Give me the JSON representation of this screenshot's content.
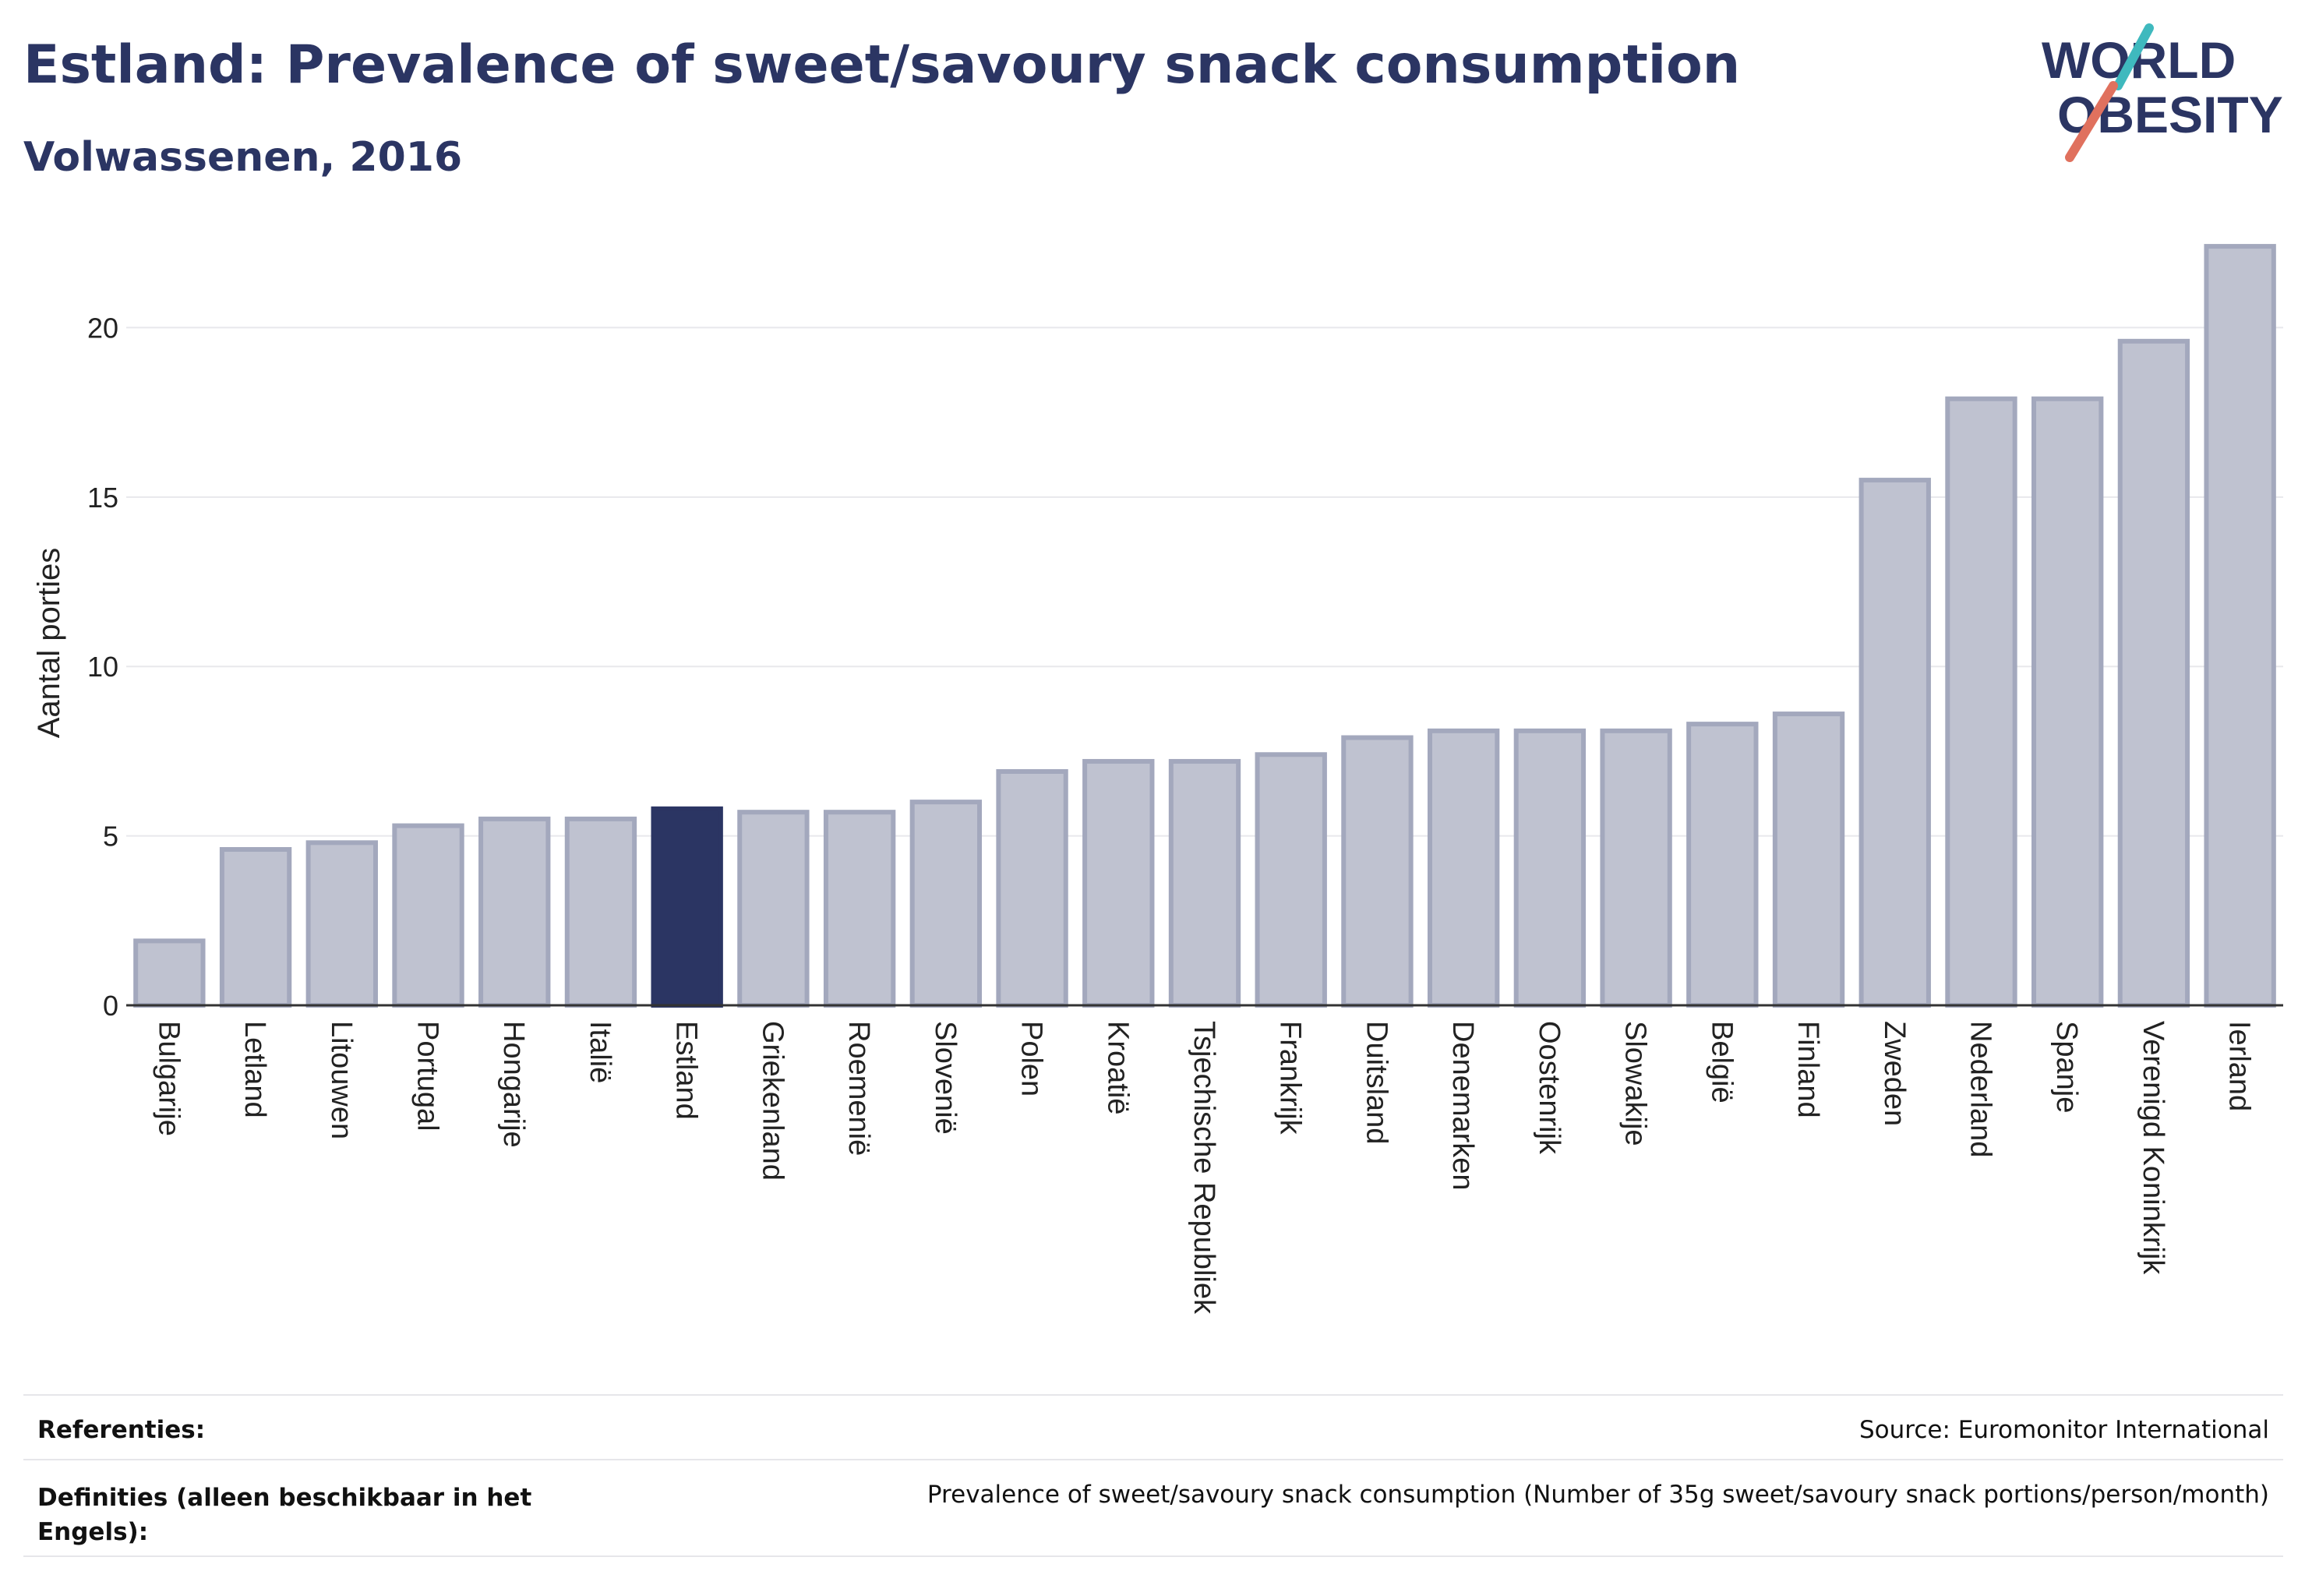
{
  "header": {
    "title": "Estland: Prevalence of sweet/savoury snack consumption",
    "subtitle": "Volwassenen, 2016"
  },
  "logo": {
    "line1": "WORLD",
    "line2": "OBESITY",
    "accent_teal": "#3fb9be",
    "accent_coral": "#e0715e",
    "text_color": "#2b3563"
  },
  "chart_data": {
    "type": "bar",
    "title": "",
    "xlabel": "",
    "ylabel": "Aantal porties",
    "ylim": [
      0,
      23
    ],
    "yticks": [
      0,
      5,
      10,
      15,
      20
    ],
    "grid": true,
    "highlight": "Estland",
    "highlight_color": "#2b3563",
    "bar_color": "#bfc2d0",
    "bar_border_color": "#a3a8bd",
    "categories": [
      "Bulgarije",
      "Letland",
      "Litouwen",
      "Portugal",
      "Hongarije",
      "Italië",
      "Estland",
      "Griekenland",
      "Roemenië",
      "Slovenië",
      "Polen",
      "Kroatië",
      "Tsjechische Republiek",
      "Frankrijk",
      "Duitsland",
      "Denemarken",
      "Oostenrijk",
      "Slowakije",
      "België",
      "Finland",
      "Zweden",
      "Nederland",
      "Spanje",
      "Verenigd Koninkrijk",
      "Ierland"
    ],
    "values": [
      1.9,
      4.6,
      4.8,
      5.3,
      5.5,
      5.5,
      5.8,
      5.7,
      5.7,
      6.0,
      6.9,
      7.2,
      7.2,
      7.4,
      7.9,
      8.1,
      8.1,
      8.1,
      8.3,
      8.6,
      15.5,
      17.9,
      17.9,
      19.6,
      22.4
    ]
  },
  "footer": {
    "references_label": "Referenties:",
    "references_value": "Source: Euromonitor International",
    "definitions_label": "Definities (alleen beschikbaar in het Engels):",
    "definitions_value": "Prevalence of sweet/savoury snack consumption (Number of 35g sweet/savoury snack portions/person/month)"
  }
}
